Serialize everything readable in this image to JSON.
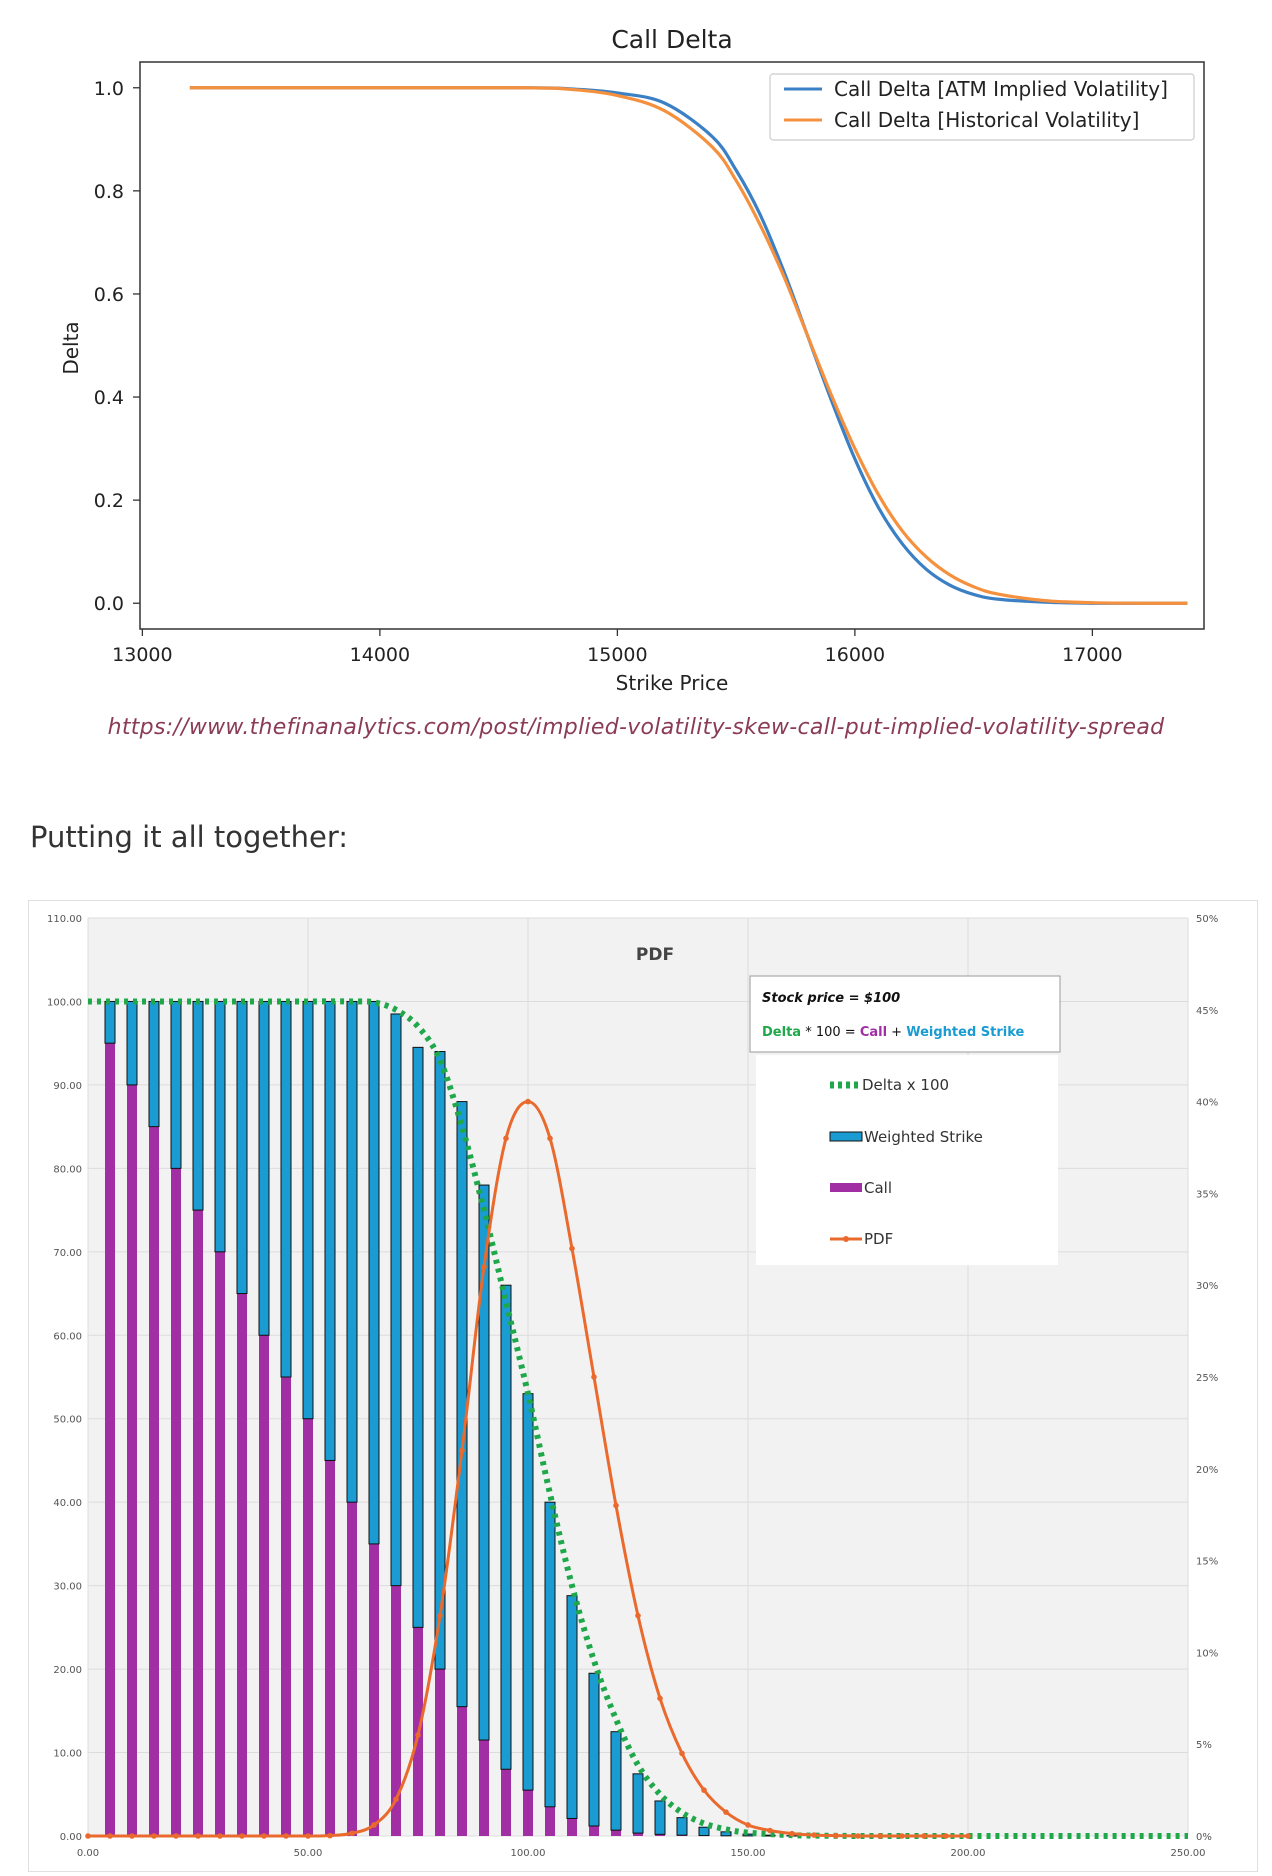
{
  "source_link": "https://www.thefinanalytics.com/post/implied-volatility-skew-call-put-implied-volatility-spread",
  "section_heading": "Putting it all together:",
  "colors": {
    "atm_line": "#3b7fc4",
    "hist_line": "#f5913e",
    "delta_dots": "#1fa84a",
    "weighted_strike": "#1a9bd1",
    "call": "#a12ea3",
    "pdf": "#ea6a2e"
  },
  "chart_data": [
    {
      "type": "line",
      "title": "Call Delta",
      "xlabel": "Strike Price",
      "ylabel": "Delta",
      "xlim": [
        12990,
        17470
      ],
      "ylim": [
        -0.05,
        1.05
      ],
      "x_ticks": [
        13000,
        14000,
        15000,
        16000,
        17000
      ],
      "y_ticks": [
        0.0,
        0.2,
        0.4,
        0.6,
        0.8,
        1.0
      ],
      "x_tick_labels": [
        "13000",
        "14000",
        "15000",
        "16000",
        "17000"
      ],
      "y_tick_labels": [
        "0.0",
        "0.2",
        "0.4",
        "0.6",
        "0.8",
        "1.0"
      ],
      "legend_position": "top-right",
      "series": [
        {
          "name": "Call Delta [ATM Implied Volatility]",
          "color": "#3b7fc4",
          "x": [
            13200,
            14000,
            14600,
            14800,
            15000,
            15200,
            15400,
            15500,
            15600,
            15700,
            15800,
            15900,
            16000,
            16100,
            16200,
            16300,
            16400,
            16500,
            16600,
            16800,
            17000,
            17200,
            17400
          ],
          "y": [
            1.0,
            1.0,
            1.0,
            0.998,
            0.99,
            0.97,
            0.905,
            0.84,
            0.755,
            0.645,
            0.52,
            0.395,
            0.28,
            0.185,
            0.115,
            0.066,
            0.035,
            0.017,
            0.008,
            0.002,
            0.0,
            0.0,
            0.0
          ]
        },
        {
          "name": "Call Delta [Historical Volatility]",
          "color": "#f5913e",
          "x": [
            13200,
            14000,
            14600,
            14800,
            15000,
            15200,
            15400,
            15500,
            15600,
            15700,
            15800,
            15900,
            16000,
            16100,
            16200,
            16300,
            16400,
            16500,
            16600,
            16800,
            17000,
            17200,
            17400
          ],
          "y": [
            1.0,
            1.0,
            1.0,
            0.997,
            0.985,
            0.955,
            0.885,
            0.82,
            0.735,
            0.635,
            0.52,
            0.405,
            0.3,
            0.21,
            0.14,
            0.09,
            0.055,
            0.032,
            0.018,
            0.005,
            0.001,
            0.0,
            0.0
          ]
        }
      ]
    },
    {
      "type": "bar",
      "title": "PDF",
      "ylim": [
        0,
        110
      ],
      "y2lim": [
        0,
        0.5
      ],
      "xlim": [
        0,
        250
      ],
      "x_tick_labels": [
        "0.00",
        "50.00",
        "100.00",
        "150.00",
        "200.00",
        "250.00"
      ],
      "y_tick_labels": [
        "0.00",
        "10.00",
        "20.00",
        "30.00",
        "40.00",
        "50.00",
        "60.00",
        "70.00",
        "80.00",
        "90.00",
        "100.00",
        "110.00"
      ],
      "y2_tick_labels": [
        "0%",
        "5%",
        "10%",
        "15%",
        "20%",
        "25%",
        "30%",
        "35%",
        "40%",
        "45%",
        "50%"
      ],
      "x_ticks": [
        0,
        50,
        100,
        150,
        200,
        250
      ],
      "y_ticks": [
        0,
        10,
        20,
        30,
        40,
        50,
        60,
        70,
        80,
        90,
        100,
        110
      ],
      "y2_ticks": [
        0,
        0.05,
        0.1,
        0.15,
        0.2,
        0.25,
        0.3,
        0.35,
        0.4,
        0.45,
        0.5
      ],
      "strikes": [
        5,
        10,
        15,
        20,
        25,
        30,
        35,
        40,
        45,
        50,
        55,
        60,
        65,
        70,
        75,
        80,
        85,
        90,
        95,
        100,
        105,
        110,
        115,
        120,
        125,
        130,
        135,
        140,
        145,
        150,
        155,
        160,
        165,
        170,
        175,
        180,
        185,
        190,
        195,
        200,
        205,
        210,
        215
      ],
      "series": [
        {
          "name": "Call",
          "color": "#a12ea3",
          "values": [
            95,
            90,
            85,
            80,
            75,
            70,
            65,
            60,
            55,
            50,
            45,
            40,
            35,
            30,
            25,
            20,
            15.5,
            11.5,
            8,
            5.5,
            3.5,
            2.1,
            1.2,
            0.7,
            0.35,
            0.2,
            0.1,
            0.05,
            0.02,
            0.01,
            0,
            0,
            0,
            0,
            0,
            0,
            0,
            0,
            0,
            0,
            0,
            0,
            0
          ]
        },
        {
          "name": "Weighted Strike",
          "color": "#1a9bd1",
          "values": [
            5,
            10,
            15,
            20,
            25,
            30,
            35,
            40,
            45,
            50,
            55,
            60,
            65,
            68.5,
            69.5,
            74,
            72.5,
            66.5,
            58,
            47.5,
            36.5,
            26.7,
            18.3,
            11.8,
            7.1,
            4.0,
            2.1,
            1.0,
            0.48,
            0.22,
            0.1,
            0.04,
            0.02,
            0.01,
            0,
            0,
            0,
            0,
            0,
            0,
            0,
            0,
            0
          ]
        },
        {
          "name": "Delta x 100",
          "color": "#1fa84a",
          "x": [
            0,
            10,
            20,
            30,
            40,
            50,
            60,
            65,
            70,
            75,
            80,
            85,
            90,
            95,
            100,
            105,
            110,
            115,
            120,
            125,
            130,
            135,
            140,
            145,
            150,
            160,
            170,
            180,
            200,
            250
          ],
          "values": [
            100,
            100,
            100,
            100,
            100,
            100,
            100,
            99.9,
            99,
            97,
            93,
            85,
            75,
            64,
            53,
            41,
            30,
            21,
            14,
            8.5,
            5,
            2.8,
            1.5,
            0.8,
            0.4,
            0.1,
            0.02,
            0,
            0,
            0
          ]
        },
        {
          "name": "PDF",
          "color": "#ea6a2e",
          "x": [
            0,
            5,
            10,
            15,
            20,
            25,
            30,
            35,
            40,
            45,
            50,
            55,
            60,
            65,
            70,
            75,
            80,
            85,
            90,
            95,
            100,
            105,
            110,
            115,
            120,
            125,
            130,
            135,
            140,
            145,
            150,
            155,
            160,
            165,
            170,
            175,
            180,
            185,
            190,
            195,
            200
          ],
          "values": [
            0,
            0,
            0,
            0,
            0,
            0,
            0,
            0,
            0,
            0,
            0,
            0.0002,
            0.0015,
            0.006,
            0.02,
            0.055,
            0.12,
            0.21,
            0.31,
            0.38,
            0.4,
            0.38,
            0.32,
            0.25,
            0.18,
            0.12,
            0.075,
            0.045,
            0.025,
            0.013,
            0.006,
            0.003,
            0.0013,
            0.0005,
            0.0002,
            0,
            0,
            0,
            0,
            0,
            0
          ]
        }
      ],
      "note_box": {
        "title": "Stock price = $100",
        "formula_delta": "Delta",
        "formula_mid": " * 100 = ",
        "formula_call": "Call",
        "formula_plus": " + ",
        "formula_ws": "Weighted Strike"
      },
      "legend": [
        "Delta x 100",
        "Weighted Strike",
        "Call",
        "PDF"
      ]
    }
  ]
}
